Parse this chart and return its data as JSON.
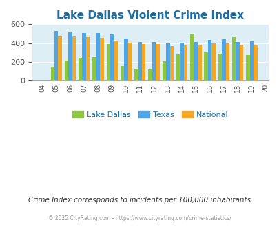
{
  "title": "Lake Dallas Violent Crime Index",
  "years": [
    2004,
    2005,
    2006,
    2007,
    2008,
    2009,
    2010,
    2011,
    2012,
    2013,
    2014,
    2015,
    2016,
    2017,
    2018,
    2019,
    2020
  ],
  "lake_dallas": [
    0,
    148,
    210,
    243,
    248,
    390,
    158,
    128,
    120,
    205,
    280,
    500,
    300,
    285,
    460,
    270,
    0
  ],
  "texas": [
    0,
    530,
    518,
    508,
    508,
    492,
    450,
    410,
    410,
    400,
    405,
    410,
    435,
    438,
    408,
    418,
    0
  ],
  "national": [
    0,
    468,
    470,
    463,
    454,
    428,
    403,
    388,
    388,
    365,
    375,
    380,
    400,
    395,
    380,
    378,
    0
  ],
  "bar_colors": {
    "lake_dallas": "#8dc641",
    "texas": "#4da6e8",
    "national": "#f5a623"
  },
  "bg_color": "#deeef5",
  "title_color": "#1a6fa8",
  "ylim": [
    0,
    600
  ],
  "yticks": [
    0,
    200,
    400,
    600
  ],
  "legend_labels": [
    "Lake Dallas",
    "Texas",
    "National"
  ],
  "subtitle": "Crime Index corresponds to incidents per 100,000 inhabitants",
  "footer": "© 2025 CityRating.com - https://www.cityrating.com/crime-statistics/",
  "subtitle_color": "#333333",
  "footer_color": "#999999"
}
